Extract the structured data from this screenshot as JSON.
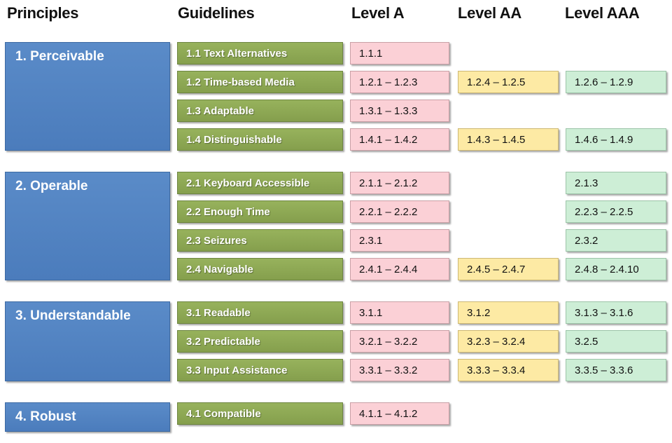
{
  "headers": {
    "principles": "Principles",
    "guidelines": "Guidelines",
    "level_a": "Level A",
    "level_aa": "Level AA",
    "level_aaa": "Level AAA"
  },
  "colors": {
    "principle": "#4f81bd",
    "guideline": "#8ea853",
    "level_a": "#fbd0d6",
    "level_aa": "#fdeaa4",
    "level_aaa": "#cdeed6"
  },
  "principles": [
    {
      "label": "1. Perceivable",
      "guidelines": [
        {
          "label": "1.1 Text Alternatives",
          "a": "1.1.1",
          "aa": "",
          "aaa": ""
        },
        {
          "label": "1.2 Time-based Media",
          "a": "1.2.1 – 1.2.3",
          "aa": "1.2.4 – 1.2.5",
          "aaa": "1.2.6 – 1.2.9"
        },
        {
          "label": "1.3 Adaptable",
          "a": "1.3.1 – 1.3.3",
          "aa": "",
          "aaa": ""
        },
        {
          "label": "1.4 Distinguishable",
          "a": "1.4.1 – 1.4.2",
          "aa": "1.4.3 – 1.4.5",
          "aaa": "1.4.6 – 1.4.9"
        }
      ]
    },
    {
      "label": "2. Operable",
      "guidelines": [
        {
          "label": "2.1 Keyboard Accessible",
          "a": "2.1.1 – 2.1.2",
          "aa": "",
          "aaa": "2.1.3"
        },
        {
          "label": "2.2 Enough Time",
          "a": "2.2.1 – 2.2.2",
          "aa": "",
          "aaa": "2.2.3 – 2.2.5"
        },
        {
          "label": "2.3 Seizures",
          "a": "2.3.1",
          "aa": "",
          "aaa": "2.3.2"
        },
        {
          "label": "2.4 Navigable",
          "a": "2.4.1 – 2.4.4",
          "aa": "2.4.5 – 2.4.7",
          "aaa": "2.4.8 – 2.4.10"
        }
      ]
    },
    {
      "label": "3. Understandable",
      "guidelines": [
        {
          "label": "3.1 Readable",
          "a": "3.1.1",
          "aa": "3.1.2",
          "aaa": "3.1.3 – 3.1.6"
        },
        {
          "label": "3.2 Predictable",
          "a": "3.2.1 – 3.2.2",
          "aa": "3.2.3 – 3.2.4",
          "aaa": "3.2.5"
        },
        {
          "label": "3.3 Input Assistance",
          "a": "3.3.1 – 3.3.2",
          "aa": "3.3.3 – 3.3.4",
          "aaa": "3.3.5 – 3.3.6"
        }
      ]
    },
    {
      "label": "4. Robust",
      "guidelines": [
        {
          "label": "4.1 Compatible",
          "a": "4.1.1 – 4.1.2",
          "aa": "",
          "aaa": ""
        }
      ]
    }
  ]
}
